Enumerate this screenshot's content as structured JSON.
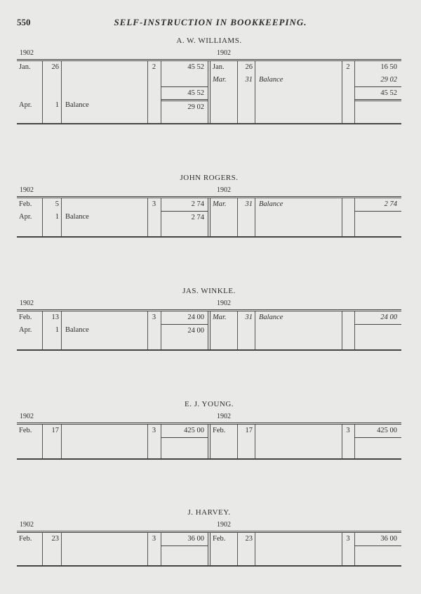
{
  "page_number": "550",
  "running_head": "SELF-INSTRUCTION IN BOOKKEEPING.",
  "ledgers": [
    {
      "name": "A. W. WILLIAMS.",
      "year_debit": "1902",
      "year_credit": "1902",
      "debit": [
        {
          "month": "Jan.",
          "day": "26",
          "desc": "",
          "folio": "2",
          "amount": "45 52"
        },
        {},
        {
          "amount": "45 52",
          "rule_above": "single"
        },
        {
          "month": "Apr.",
          "day": "1",
          "desc": "Balance",
          "folio": "",
          "amount": "29 02",
          "rule_above": "double"
        }
      ],
      "credit": [
        {
          "month": "Jan.",
          "day": "26",
          "desc": "",
          "folio": "2",
          "amount": "16 50"
        },
        {
          "month": "Mar.",
          "day": "31",
          "desc": "Balance",
          "folio": "",
          "amount": "29 02",
          "italic": true
        },
        {
          "amount": "45 52",
          "rule_above": "single"
        },
        {
          "rule_above": "double"
        }
      ]
    },
    {
      "name": "JOHN ROGERS.",
      "year_debit": "1902",
      "year_credit": "1902",
      "debit": [
        {
          "month": "Feb.",
          "day": "5",
          "desc": "",
          "folio": "3",
          "amount": "2 74"
        },
        {
          "month": "Apr.",
          "day": "1",
          "desc": "Balance",
          "folio": "",
          "amount": "2 74",
          "rule_above": "single"
        }
      ],
      "credit": [
        {
          "month": "Mar.",
          "day": "31",
          "desc": "Balance",
          "folio": "",
          "amount": "2 74",
          "italic": true
        },
        {
          "rule_above": "single"
        }
      ]
    },
    {
      "name": "JAS. WINKLE.",
      "year_debit": "1902",
      "year_credit": "1902",
      "debit": [
        {
          "month": "Feb.",
          "day": "13",
          "desc": "",
          "folio": "3",
          "amount": "24 00"
        },
        {
          "month": "Apr.",
          "day": "1",
          "desc": "Balance",
          "folio": "",
          "amount": "24 00",
          "rule_above": "single"
        }
      ],
      "credit": [
        {
          "month": "Mar.",
          "day": "31",
          "desc": "Balance",
          "folio": "",
          "amount": "24 00",
          "italic": true
        },
        {
          "rule_above": "single"
        }
      ]
    },
    {
      "name": "E. J. YOUNG.",
      "year_debit": "1902",
      "year_credit": "1902",
      "debit": [
        {
          "month": "Feb.",
          "day": "17",
          "desc": "",
          "folio": "3",
          "amount": "425 00"
        },
        {
          "rule_above": "single"
        }
      ],
      "credit": [
        {
          "month": "Feb.",
          "day": "17",
          "desc": "",
          "folio": "3",
          "amount": "425 00"
        },
        {
          "rule_above": "single"
        }
      ]
    },
    {
      "name": "J. HARVEY.",
      "year_debit": "1902",
      "year_credit": "1902",
      "debit": [
        {
          "month": "Feb.",
          "day": "23",
          "desc": "",
          "folio": "3",
          "amount": "36 00"
        },
        {
          "rule_above": "single"
        }
      ],
      "credit": [
        {
          "month": "Feb.",
          "day": "23",
          "desc": "",
          "folio": "3",
          "amount": "36 00"
        },
        {
          "rule_above": "single"
        }
      ]
    }
  ]
}
